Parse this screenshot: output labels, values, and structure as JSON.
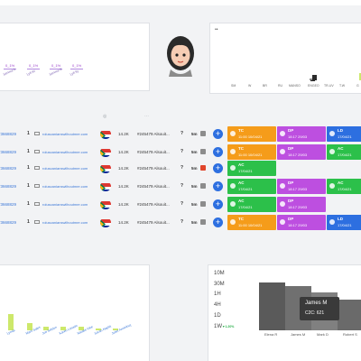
{
  "top_left": {
    "percents": [
      "0_1%",
      "0_1%",
      "0_1%",
      "0_1%"
    ],
    "labels": [
      "Service ll",
      "Lyft W",
      "Service E",
      "Lyft fly"
    ]
  },
  "top_right": {
    "dots": "••",
    "labels": [
      "SM",
      "W",
      "BR",
      "RU",
      "MANSO",
      "ENGEO",
      "TR-UV",
      "T.W",
      "G"
    ]
  },
  "table": {
    "rows": [
      {
        "phone": "73668829",
        "count": "1",
        "email": "roluscanianswilhoutmer.com",
        "amount": "14.2K",
        "ref": "#245479 Alsouit...",
        "q": "?",
        "dur": "5m",
        "square": "#8c8c8c",
        "chips": [
          {
            "abbr": "TC",
            "time": "11:00 10/04/21",
            "color": "#f59c1a"
          },
          {
            "abbr": "DP",
            "time": "18:17 29/03",
            "color": "#bd4fe0"
          },
          {
            "abbr": "LD",
            "time": "17/04/21",
            "color": "#2d6fe0"
          }
        ]
      },
      {
        "phone": "73668829",
        "count": "1",
        "email": "roluscanianswilhoutmer.com",
        "amount": "14.2K",
        "ref": "#245479 Alsouit...",
        "q": "?",
        "dur": "5m",
        "square": "#8c8c8c",
        "chips": [
          {
            "abbr": "TC",
            "time": "11:00 10/04/21",
            "color": "#f59c1a"
          },
          {
            "abbr": "DP",
            "time": "18:17 29/03",
            "color": "#bd4fe0"
          },
          {
            "abbr": "AC",
            "time": "17/04/21",
            "color": "#2cc04a"
          }
        ]
      },
      {
        "phone": "73668829",
        "count": "1",
        "email": "roluscanianswilhoutmer.com",
        "amount": "14.2K",
        "ref": "#245479 Alsouit...",
        "q": "?",
        "dur": "5m",
        "square": "#e0452b",
        "chips": [
          {
            "abbr": "AC",
            "time": "17/04/21",
            "color": "#2cc04a"
          }
        ]
      },
      {
        "phone": "73668829",
        "count": "1",
        "email": "roluscanianswilhoutmer.com",
        "amount": "14.2K",
        "ref": "#245479 Alsouit...",
        "q": "?",
        "dur": "5m",
        "square": "#8c8c8c",
        "chips": [
          {
            "abbr": "AC",
            "time": "17/04/21",
            "color": "#2cc04a"
          },
          {
            "abbr": "DP",
            "time": "18:17 29/03",
            "color": "#bd4fe0"
          },
          {
            "abbr": "AC",
            "time": "17/04/21",
            "color": "#2cc04a"
          }
        ]
      },
      {
        "phone": "73668829",
        "count": "1",
        "email": "roluscanianswilhoutmer.com",
        "amount": "14.2K",
        "ref": "#245479 Alsouit...",
        "q": "?",
        "dur": "5m",
        "square": "#8c8c8c",
        "chips": [
          {
            "abbr": "AC",
            "time": "17/04/21",
            "color": "#2cc04a"
          },
          {
            "abbr": "DP",
            "time": "18:17 29/03",
            "color": "#bd4fe0"
          }
        ]
      },
      {
        "phone": "73668829",
        "count": "1",
        "email": "roluscanianswilhoutmer.com",
        "amount": "14.2K",
        "ref": "#245479 Alsouit...",
        "q": "?",
        "dur": "5m",
        "square": "#8c8c8c",
        "chips": [
          {
            "abbr": "TC",
            "time": "11:00 10/04/21",
            "color": "#f59c1a"
          },
          {
            "abbr": "DP",
            "time": "18:17 29/03",
            "color": "#bd4fe0"
          },
          {
            "abbr": "LD",
            "time": "17/04/21",
            "color": "#2d6fe0"
          }
        ]
      }
    ]
  },
  "bottom_left": {
    "labels": [
      "Lynda",
      "Mark Sales",
      "Joe Seldon",
      "Karen Losado",
      "Natalie Vike",
      "Saran Naplik",
      "Juliet Anninksq"
    ]
  },
  "chart_data": {
    "type": "bar",
    "categories": [
      "Elena R",
      "James M",
      "Mark D",
      "Robert S",
      ""
    ],
    "values": [
      7,
      6.5,
      5.5,
      4.5,
      3.5
    ],
    "y_tick_labels": [
      "10M",
      "30M",
      "1H",
      "4H",
      "1D",
      "1W"
    ],
    "y_bottom_sublabel": "▼1.20%",
    "tooltip": {
      "name": "James M",
      "value": "C2C: 621"
    }
  },
  "colors": {
    "orange": "#f59c1a",
    "purple": "#bd4fe0",
    "blue": "#2d6fe0",
    "green": "#2cc04a"
  }
}
